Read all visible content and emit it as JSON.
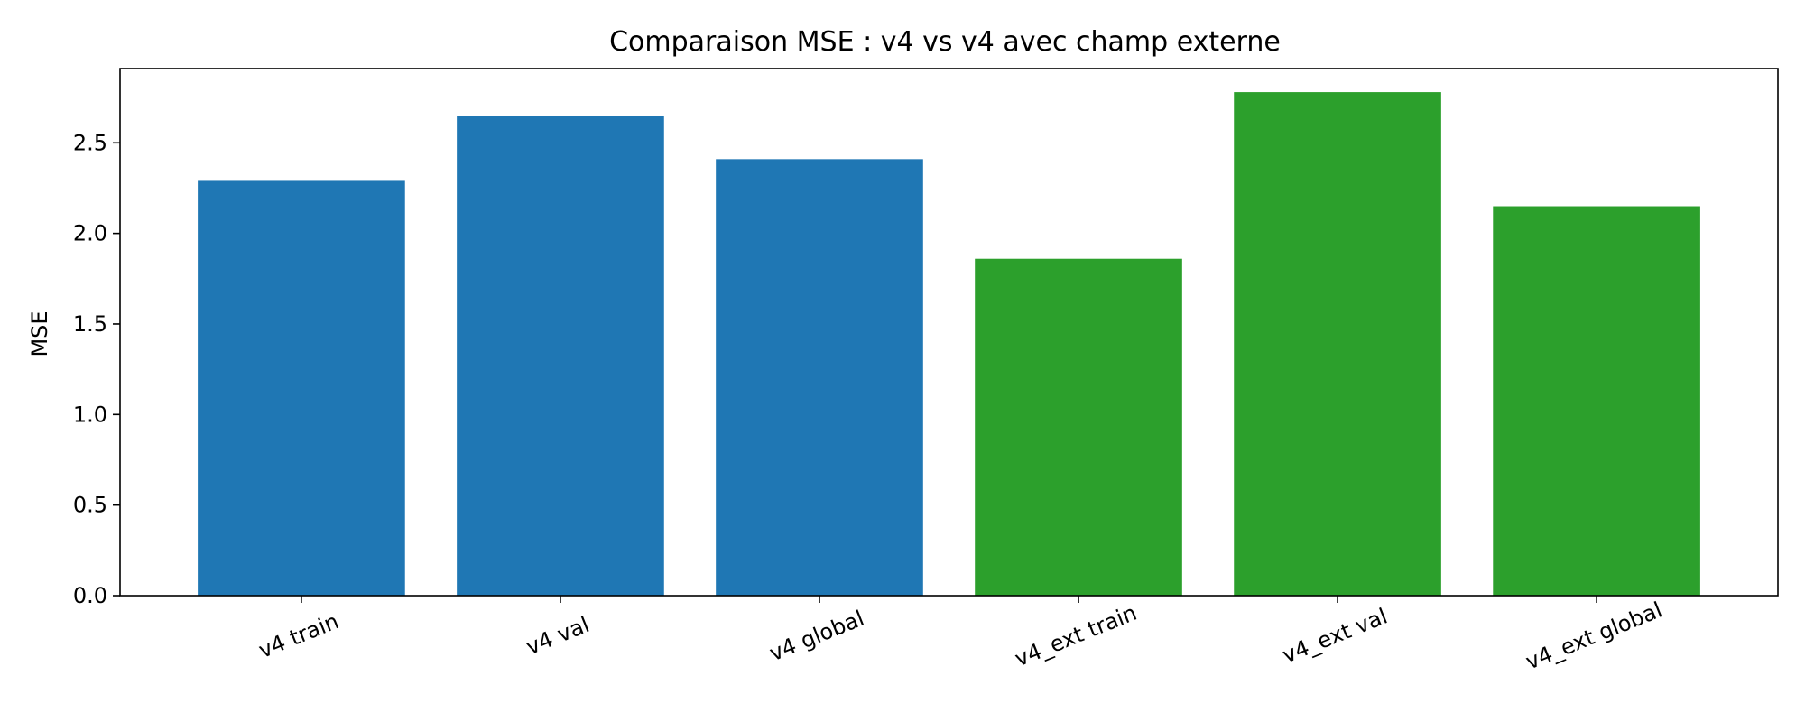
{
  "chart_data": {
    "type": "bar",
    "title": "Comparaison MSE : v4 vs v4 avec champ externe",
    "xlabel": "",
    "ylabel": "MSE",
    "categories": [
      "v4 train",
      "v4 val",
      "v4 global",
      "v4_ext train",
      "v4_ext val",
      "v4_ext global"
    ],
    "values": [
      2.29,
      2.65,
      2.41,
      1.86,
      2.78,
      2.15
    ],
    "colors": [
      "#1f77b4",
      "#1f77b4",
      "#1f77b4",
      "#2ca02c",
      "#2ca02c",
      "#2ca02c"
    ],
    "ylim": [
      0,
      2.91
    ],
    "yticks": [
      "0.0",
      "0.5",
      "1.0",
      "1.5",
      "2.0",
      "2.5"
    ],
    "xtick_rotation_deg": -22,
    "grid": false,
    "legend": "none"
  }
}
